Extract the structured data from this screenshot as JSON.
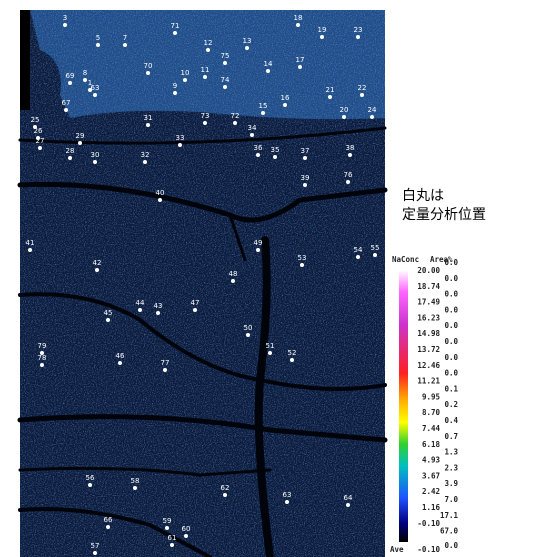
{
  "annotation": [
    "白丸は",
    "定量分析位置"
  ],
  "legend": {
    "header": [
      "NaConc",
      "Area%"
    ],
    "conc": [
      "20.00",
      "18.74",
      "17.49",
      "16.23",
      "14.98",
      "13.72",
      "12.46",
      "11.21",
      "9.95",
      "8.70",
      "7.44",
      "6.18",
      "4.93",
      "3.67",
      "2.42",
      "1.16",
      "-0.10"
    ],
    "area": [
      "0.0",
      "0.0",
      "0.0",
      "0.0",
      "0.0",
      "0.0",
      "0.0",
      "0.0",
      "0.1",
      "0.2",
      "0.4",
      "0.7",
      "1.3",
      "2.3",
      "3.9",
      "7.0",
      "17.1",
      "67.0"
    ],
    "ave": [
      "Ave",
      "-0.10",
      "0.0"
    ]
  },
  "points": [
    "3",
    "5",
    "7",
    "71",
    "12",
    "13",
    "18",
    "19",
    "23",
    "75",
    "14",
    "17",
    "70",
    "10",
    "11",
    "8",
    "69",
    "1",
    "63",
    "9",
    "74",
    "67",
    "21",
    "22",
    "15",
    "16",
    "20",
    "24",
    "73",
    "72",
    "34",
    "31",
    "25",
    "26",
    "27",
    "29",
    "28",
    "30",
    "32",
    "33",
    "36",
    "35",
    "37",
    "38",
    "39",
    "76",
    "40",
    "41",
    "49",
    "55",
    "54",
    "53",
    "42",
    "48",
    "47",
    "44",
    "43",
    "45",
    "50",
    "51",
    "52",
    "46",
    "77",
    "79",
    "78",
    "56",
    "58",
    "62",
    "63",
    "64",
    "66",
    "59",
    "60",
    "61",
    "57"
  ]
}
